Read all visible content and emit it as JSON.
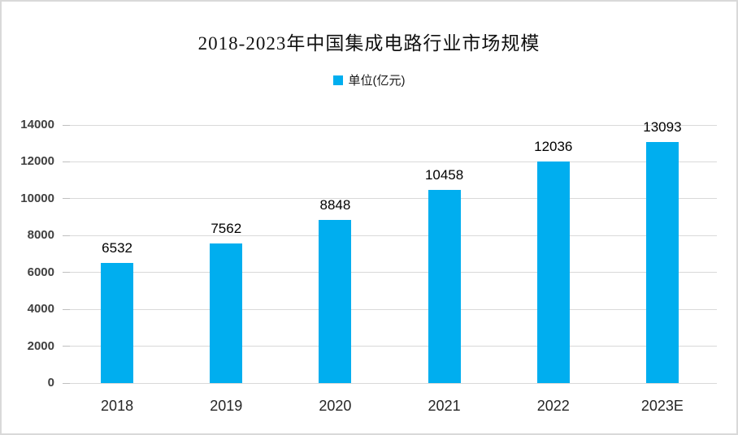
{
  "chart": {
    "title": "2018-2023年中国集成电路行业市场规模",
    "legend": {
      "label": "单位(亿元)",
      "marker_color": "#00AEEF"
    }
  },
  "chart_data": {
    "type": "bar",
    "title": "2018-2023年中国集成电路行业市场规模",
    "categories": [
      "2018",
      "2019",
      "2020",
      "2021",
      "2022",
      "2023E"
    ],
    "values": [
      6532,
      7562,
      8848,
      10458,
      12036,
      13093
    ],
    "series_name": "单位(亿元)",
    "xlabel": "",
    "ylabel": "",
    "ylim": [
      0,
      14000
    ],
    "yticks": [
      0,
      2000,
      4000,
      6000,
      8000,
      10000,
      12000,
      14000
    ],
    "grid": true,
    "legend_position": "top-center",
    "data_labels": true
  },
  "colors": {
    "bar": "#00AEEF",
    "gridline": "#d9d9d9",
    "tick": "#bfbfbf",
    "axis_text": "#404040",
    "label_text": "#000000",
    "frame_border": "#d9d9d9"
  }
}
